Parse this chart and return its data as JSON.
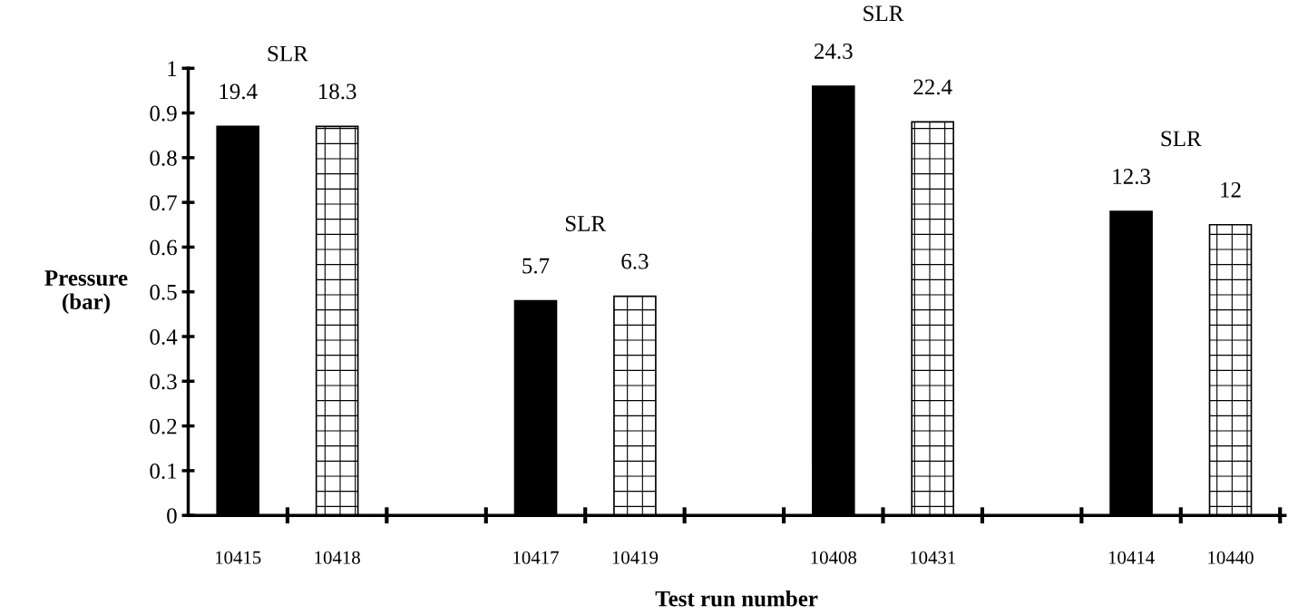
{
  "chart_data": {
    "type": "bar",
    "xlabel": "Test run number",
    "ylabel": "Pressure\n(bar)",
    "categories": [
      "10415",
      "10418",
      null,
      "10417",
      "10419",
      null,
      "10408",
      "10431",
      null,
      "10414",
      "10440"
    ],
    "series": [
      {
        "color": "#000000",
        "values": [
          0.87,
          null,
          null,
          0.48,
          null,
          null,
          0.96,
          null,
          null,
          0.68,
          null
        ]
      },
      {
        "color": "#ffffff",
        "values": [
          null,
          0.87,
          null,
          null,
          0.49,
          null,
          null,
          0.88,
          null,
          null,
          0.65
        ]
      }
    ],
    "ylim": [
      0,
      1
    ],
    "yticks": [
      0,
      0.1,
      0.2,
      0.3,
      0.4,
      0.5,
      0.6,
      0.7,
      0.8,
      0.9,
      1
    ],
    "grid": false,
    "annotations": [
      "SLR",
      "19.4",
      "18.3",
      "SLR",
      "5.7",
      "6.3",
      "SLR",
      "24.3",
      "22.4",
      "SLR",
      "12.3",
      "12"
    ]
  }
}
